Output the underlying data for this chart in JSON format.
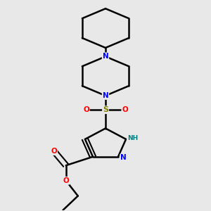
{
  "background_color": "#e8e8e8",
  "bond_color": "#000000",
  "N_color": "#0000ff",
  "O_color": "#ff0000",
  "S_color": "#808000",
  "H_color": "#008080",
  "figsize": [
    3.0,
    3.0
  ],
  "dpi": 100,
  "xlim": [
    0.15,
    0.85
  ],
  "ylim": [
    0.02,
    0.98
  ]
}
